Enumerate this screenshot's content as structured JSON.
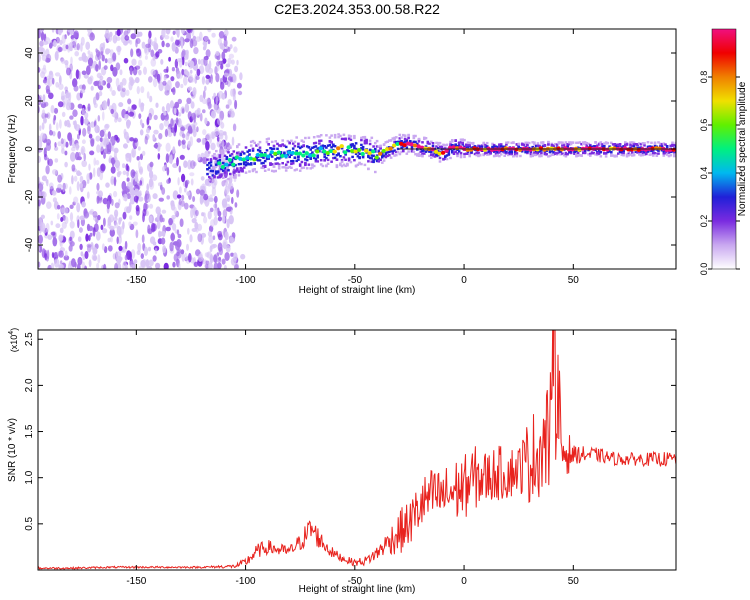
{
  "title": "C2E3.2024.353.00.58.R22",
  "chart_data": [
    {
      "type": "heatmap",
      "xlabel": "Height of straight line (km)",
      "ylabel": "Frequency (Hz)",
      "xlim": [
        -195,
        97
      ],
      "ylim": [
        -50,
        50
      ],
      "xticks": [
        -150,
        -100,
        -50,
        0,
        50
      ],
      "yticks": [
        -40,
        -20,
        0,
        20,
        40
      ],
      "xtick_labels": [
        "-150",
        "-100",
        "-50",
        "0",
        "50"
      ],
      "ytick_labels": [
        "-40",
        "-20",
        "0",
        "20",
        "40"
      ],
      "ridge": {
        "x": [
          -115,
          -105,
          -95,
          -85,
          -75,
          -65,
          -55,
          -45,
          -40,
          -35,
          -30,
          -25,
          -20,
          -15,
          -10,
          -5,
          0,
          10,
          20,
          30,
          40,
          50,
          60,
          70,
          80,
          95
        ],
        "frequency_hz": [
          -8,
          -5,
          -3,
          -2,
          -2,
          -1,
          0,
          -1,
          -3,
          0,
          2,
          2,
          1,
          0,
          -2,
          1,
          0,
          0,
          0,
          0,
          0,
          0,
          0,
          0,
          0,
          0
        ]
      },
      "colorbar": {
        "label": "Normalized spectral amplitude",
        "range": [
          0,
          1
        ],
        "ticks": [
          0.0,
          0.2,
          0.4,
          0.6,
          0.8
        ],
        "tick_labels": [
          "0.0",
          "0.2",
          "0.4",
          "0.6",
          "0.8"
        ],
        "colormap": [
          "#ffffff",
          "#c9a8f0",
          "#7a2be0",
          "#2020d8",
          "#00b8f0",
          "#00f080",
          "#60f000",
          "#f0e000",
          "#f08000",
          "#f00000",
          "#f01080"
        ]
      }
    },
    {
      "type": "line",
      "xlabel": "Height of straight line (km)",
      "ylabel": "SNR (10 * v/v)",
      "y_multiplier_label": "(x10",
      "y_multiplier_exp": "4",
      "y_multiplier_close": ")",
      "xlim": [
        -195,
        97
      ],
      "ylim": [
        0,
        2.6
      ],
      "xticks": [
        -150,
        -100,
        -50,
        0,
        50
      ],
      "yticks": [
        0.5,
        1.0,
        1.5,
        2.0,
        2.5
      ],
      "xtick_labels": [
        "-150",
        "-100",
        "-50",
        "0",
        "50"
      ],
      "ytick_labels": [
        "0.5",
        "1.0",
        "1.5",
        "2.0",
        "2.5"
      ],
      "series": [
        {
          "color": "#e8231e",
          "x": [
            -195,
            -180,
            -160,
            -140,
            -120,
            -105,
            -100,
            -95,
            -90,
            -85,
            -80,
            -75,
            -70,
            -65,
            -60,
            -55,
            -50,
            -45,
            -40,
            -35,
            -30,
            -25,
            -20,
            -15,
            -10,
            -5,
            0,
            5,
            10,
            15,
            20,
            25,
            30,
            35,
            40,
            42,
            45,
            50,
            60,
            70,
            80,
            90,
            97
          ],
          "y": [
            0.02,
            0.02,
            0.03,
            0.03,
            0.03,
            0.04,
            0.08,
            0.2,
            0.25,
            0.22,
            0.2,
            0.3,
            0.45,
            0.3,
            0.18,
            0.12,
            0.08,
            0.1,
            0.18,
            0.3,
            0.4,
            0.5,
            0.7,
            0.8,
            0.8,
            0.85,
            0.9,
            1.0,
            1.0,
            1.05,
            1.05,
            1.1,
            1.2,
            1.3,
            1.5,
            2.0,
            1.3,
            1.25,
            1.25,
            1.2,
            1.2,
            1.2,
            1.2
          ],
          "noise_amp": [
            0.01,
            0.01,
            0.01,
            0.01,
            0.01,
            0.02,
            0.05,
            0.08,
            0.08,
            0.07,
            0.06,
            0.1,
            0.15,
            0.1,
            0.06,
            0.04,
            0.04,
            0.05,
            0.08,
            0.12,
            0.25,
            0.25,
            0.3,
            0.3,
            0.3,
            0.35,
            0.35,
            0.35,
            0.3,
            0.3,
            0.3,
            0.25,
            0.5,
            0.5,
            0.7,
            0.8,
            0.4,
            0.1,
            0.08,
            0.07,
            0.07,
            0.08,
            0.08
          ]
        }
      ]
    }
  ]
}
